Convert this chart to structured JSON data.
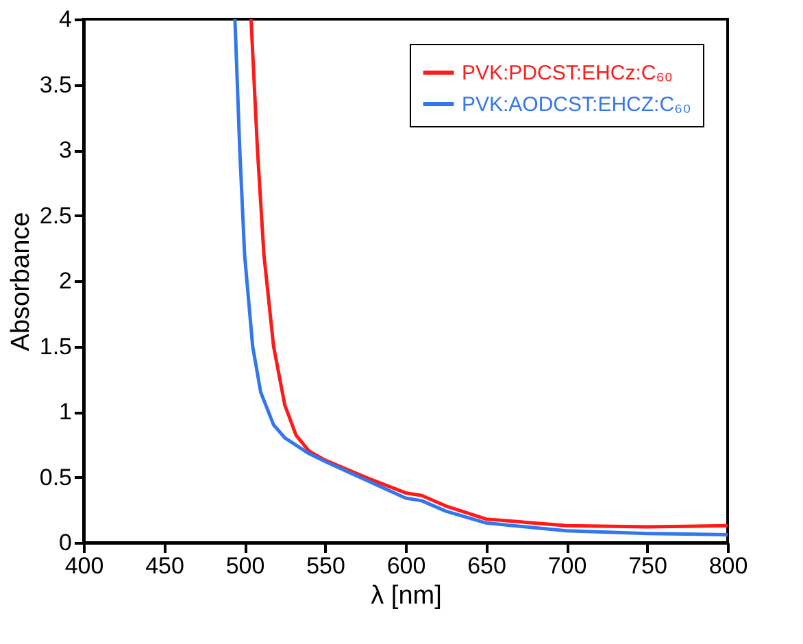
{
  "chart_data": {
    "type": "line",
    "xlabel": "λ [nm]",
    "ylabel": "Absorbance",
    "xlim": [
      400,
      800
    ],
    "xticks": [
      400,
      450,
      500,
      550,
      600,
      650,
      700,
      750,
      800
    ],
    "ylim": [
      0,
      4
    ],
    "yticks": [
      0,
      0.5,
      1,
      1.5,
      2,
      2.5,
      3,
      3.5,
      4
    ],
    "grid": false,
    "legend": "top right",
    "marker": "none",
    "line_style": "solid",
    "series": [
      {
        "name": "PVK:PDCST:EHCz:C₆₀",
        "color": "#ff1a1a",
        "x": [
          504,
          508,
          512,
          518,
          525,
          532,
          540,
          550,
          575,
          600,
          610,
          625,
          650,
          700,
          750,
          800
        ],
        "values": [
          4,
          3,
          2.2,
          1.5,
          1.05,
          0.82,
          0.7,
          0.63,
          0.5,
          0.38,
          0.36,
          0.28,
          0.18,
          0.13,
          0.12,
          0.13
        ]
      },
      {
        "name": "PVK:AODCST:EHCZ:C₆₀",
        "color": "#3377ee",
        "x": [
          494,
          497,
          500,
          505,
          510,
          518,
          525,
          540,
          550,
          575,
          600,
          610,
          625,
          650,
          700,
          750,
          800
        ],
        "values": [
          4,
          3,
          2.2,
          1.5,
          1.15,
          0.9,
          0.8,
          0.68,
          0.62,
          0.48,
          0.34,
          0.32,
          0.24,
          0.15,
          0.09,
          0.07,
          0.06
        ]
      }
    ]
  }
}
